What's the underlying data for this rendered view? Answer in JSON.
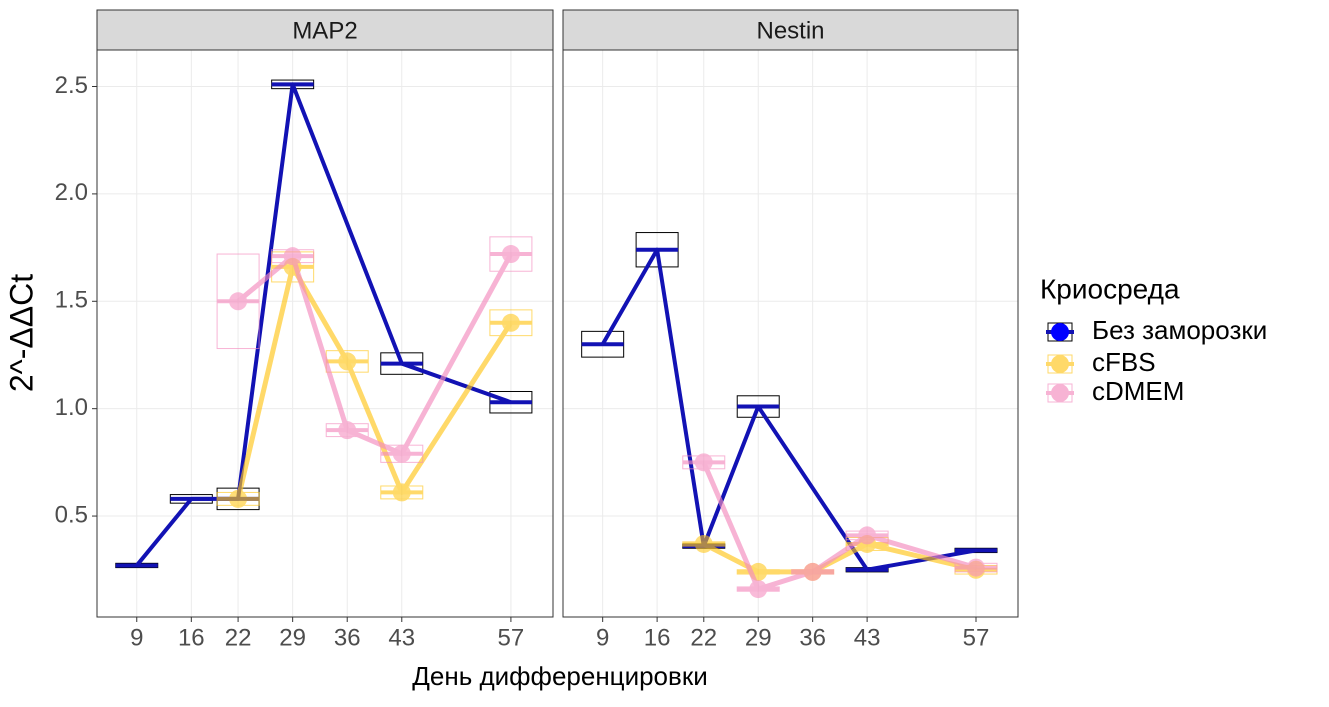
{
  "shared": {
    "xlabel": "День дифференцировки",
    "ylabel": "2^-ΔΔCt",
    "legend_title": "Криосреда"
  },
  "chart_data": [
    {
      "type": "line",
      "title": "MAP2",
      "xlim": [
        3.9,
        62.4
      ],
      "xticks": [
        9,
        16,
        22,
        29,
        36,
        43,
        57
      ],
      "ylim": [
        0.03,
        2.67
      ],
      "yticks": [
        0.5,
        {
          "value": 1,
          "label": "1.0"
        },
        1.5,
        {
          "value": 2,
          "label": "2.0"
        },
        2.5
      ],
      "grid": true,
      "series": [
        {
          "name": "Без заморозки",
          "color": "#1212b4",
          "points": false,
          "x": [
            9,
            16,
            22,
            29,
            43,
            57
          ],
          "values": [
            0.27,
            0.58,
            0.58,
            2.51,
            1.21,
            1.03
          ],
          "errors": [
            0.01,
            0.02,
            0.05,
            0.02,
            0.05,
            0.05
          ]
        },
        {
          "name": "cFBS",
          "color": "#ffc61a",
          "points": true,
          "x": [
            22,
            29,
            36,
            43,
            57
          ],
          "values": [
            0.58,
            1.66,
            1.22,
            0.61,
            1.4
          ],
          "errors": [
            0.03,
            0.07,
            0.05,
            0.03,
            0.06
          ]
        },
        {
          "name": "cDMEM",
          "color": "#f48cbe",
          "points": true,
          "x": [
            22,
            29,
            36,
            43,
            57
          ],
          "values": [
            1.5,
            1.71,
            0.9,
            0.79,
            1.72
          ],
          "errors": [
            0.22,
            0.03,
            0.03,
            0.04,
            0.08
          ]
        }
      ]
    },
    {
      "type": "line",
      "title": "Nestin",
      "xlim": [
        3.9,
        62.4
      ],
      "xticks": [
        9,
        16,
        22,
        29,
        36,
        43,
        57
      ],
      "ylim": [
        0.03,
        2.67
      ],
      "yticks": [
        0.5,
        1,
        1.5,
        2,
        2.5
      ],
      "grid": true,
      "series": [
        {
          "color": "#1212b4",
          "points": false,
          "x": [
            9,
            16,
            22,
            29,
            43,
            57
          ],
          "values": [
            1.3,
            1.74,
            0.36,
            1.01,
            0.25,
            0.34
          ],
          "errors": [
            0.06,
            0.08,
            0.01,
            0.05,
            0.01,
            0.01
          ]
        },
        {
          "color": "#ffc61a",
          "points": true,
          "x": [
            22,
            29,
            36,
            43,
            57
          ],
          "values": [
            0.37,
            0.24,
            0.24,
            0.37,
            0.25
          ],
          "errors": [
            0.01,
            0.01,
            0.01,
            0.03,
            0.02
          ]
        },
        {
          "color": "#f48cbe",
          "points": true,
          "x": [
            22,
            29,
            36,
            43,
            57
          ],
          "values": [
            0.75,
            0.16,
            0.24,
            0.41,
            0.26
          ],
          "errors": [
            0.03,
            0.01,
            0.01,
            0.02,
            0.02
          ]
        }
      ]
    }
  ]
}
